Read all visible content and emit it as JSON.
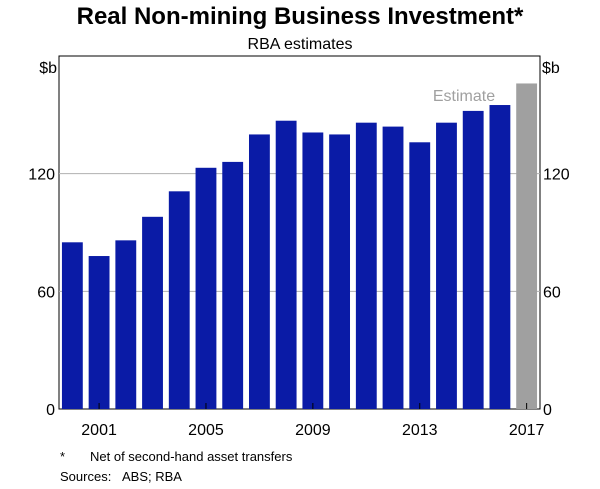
{
  "chart_data": {
    "type": "bar",
    "title": "Real Non-mining Business Investment*",
    "subtitle": "RBA estimates",
    "ylabel_left": "$b",
    "ylabel_right": "$b",
    "ylim": [
      0,
      180
    ],
    "yticks": [
      0,
      60,
      120
    ],
    "x_tick_labels": [
      "2001",
      "2005",
      "2009",
      "2013",
      "2017"
    ],
    "categories": [
      "2000",
      "2001",
      "2002",
      "2003",
      "2004",
      "2005",
      "2006",
      "2007",
      "2008",
      "2009",
      "2010",
      "2011",
      "2012",
      "2013",
      "2014",
      "2015",
      "2016",
      "2017"
    ],
    "series": [
      {
        "values": [
          85,
          78,
          86,
          98,
          111,
          123,
          126,
          140,
          147,
          141,
          140,
          146,
          144,
          136,
          146,
          152,
          155,
          166
        ],
        "estimate_flags": [
          false,
          false,
          false,
          false,
          false,
          false,
          false,
          false,
          false,
          false,
          false,
          false,
          false,
          false,
          false,
          false,
          false,
          true
        ]
      }
    ],
    "colors": {
      "actual": "#0a1ba6",
      "estimate": "#a0a0a0",
      "grid": "#b0b0b0"
    },
    "annotation": "Estimate",
    "grid": true,
    "footnote_marker": "*",
    "footnote_text": "Net of second-hand asset transfers",
    "sources_label": "Sources:",
    "sources_text": "ABS; RBA"
  }
}
